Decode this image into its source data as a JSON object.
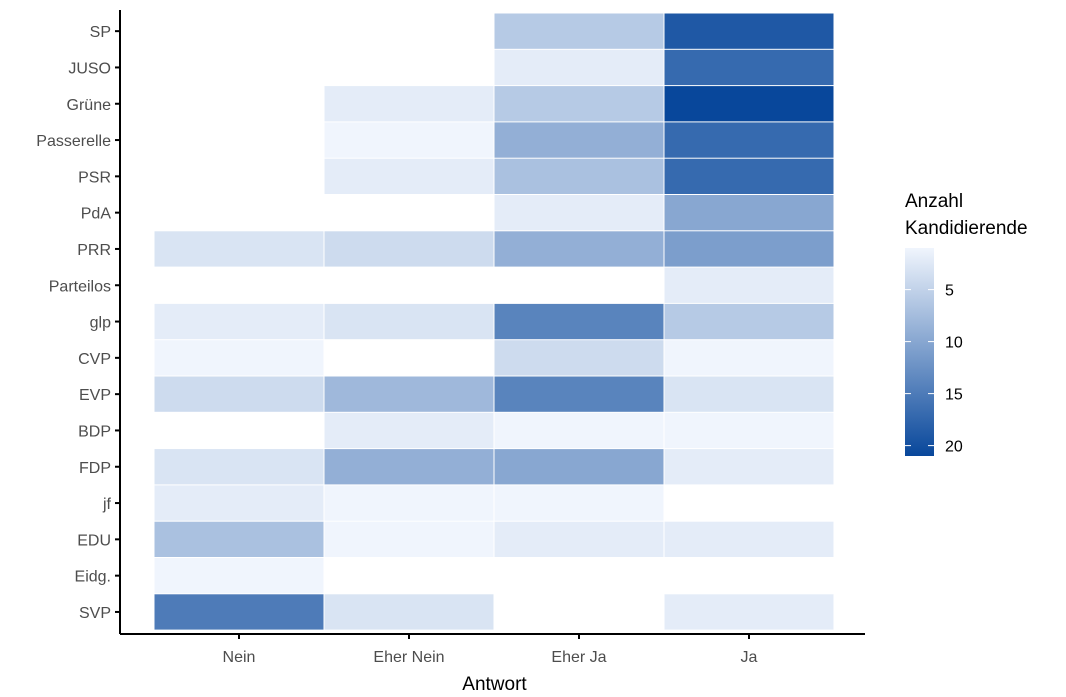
{
  "chart_data": {
    "type": "heatmap",
    "title": "",
    "xlabel": "Antwort",
    "ylabel": "",
    "x_categories": [
      "Nein",
      "Eher Nein",
      "Eher Ja",
      "Ja"
    ],
    "y_categories": [
      "SP",
      "JUSO",
      "Grüne",
      "Passerelle",
      "PSR",
      "PdA",
      "PRR",
      "Parteilos",
      "glp",
      "CVP",
      "EVP",
      "BDP",
      "FDP",
      "jf",
      "EDU",
      "Eidg.",
      "SVP"
    ],
    "values": [
      [
        null,
        null,
        6,
        19
      ],
      [
        null,
        null,
        2,
        17
      ],
      [
        null,
        2,
        6,
        21
      ],
      [
        null,
        1,
        9,
        17
      ],
      [
        null,
        2,
        7,
        17
      ],
      [
        null,
        null,
        2,
        10
      ],
      [
        3,
        4,
        9,
        11
      ],
      [
        null,
        null,
        null,
        2
      ],
      [
        2,
        3,
        14,
        6
      ],
      [
        1,
        null,
        4,
        1
      ],
      [
        4,
        8,
        14,
        3
      ],
      [
        null,
        2,
        1,
        1
      ],
      [
        3,
        9,
        10,
        2
      ],
      [
        2,
        1,
        1,
        null
      ],
      [
        7,
        1,
        2,
        2
      ],
      [
        1,
        null,
        null,
        null
      ],
      [
        15,
        3,
        null,
        2
      ]
    ],
    "legend": {
      "title_lines": [
        "Anzahl",
        "Kandidierende"
      ],
      "ticks": [
        5,
        10,
        15,
        20
      ],
      "min": 1,
      "max": 21,
      "low_color": "#f0f5fd",
      "high_color": "#08479b",
      "placement": "right"
    }
  }
}
